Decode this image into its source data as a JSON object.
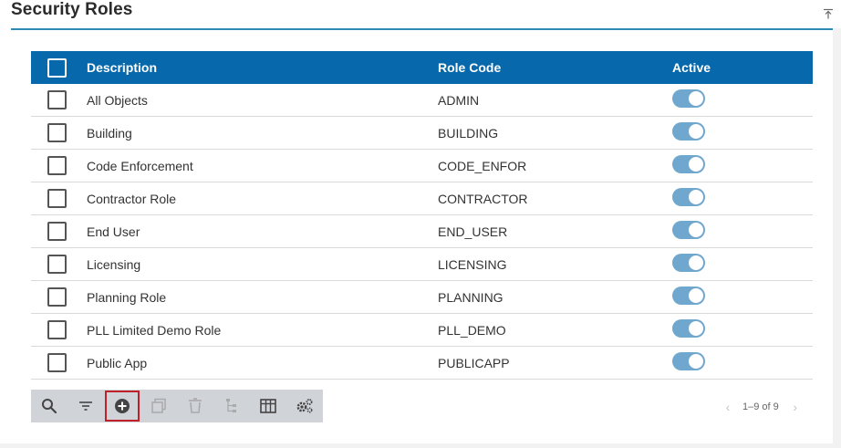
{
  "page": {
    "title": "Security Roles"
  },
  "grid": {
    "headers": {
      "description": "Description",
      "role_code": "Role Code",
      "active": "Active"
    },
    "rows": [
      {
        "description": "All Objects",
        "role_code": "ADMIN",
        "active": true
      },
      {
        "description": "Building",
        "role_code": "BUILDING",
        "active": true
      },
      {
        "description": "Code Enforcement",
        "role_code": "CODE_ENFOR",
        "active": true
      },
      {
        "description": "Contractor Role",
        "role_code": "CONTRACTOR",
        "active": true
      },
      {
        "description": "End User",
        "role_code": "END_USER",
        "active": true
      },
      {
        "description": "Licensing",
        "role_code": "LICENSING",
        "active": true
      },
      {
        "description": "Planning Role",
        "role_code": "PLANNING",
        "active": true
      },
      {
        "description": "PLL Limited Demo Role",
        "role_code": "PLL_DEMO",
        "active": true
      },
      {
        "description": "Public App",
        "role_code": "PUBLICAPP",
        "active": true
      }
    ]
  },
  "toolbar": {
    "tools": [
      "search-icon",
      "filter-icon",
      "add-circle-icon",
      "copy-icon",
      "delete-icon",
      "hierarchy-icon",
      "table-columns-icon",
      "settings-gears-icon"
    ],
    "highlighted": "add-circle-icon"
  },
  "pager": {
    "range": "1–9 of 9"
  },
  "colors": {
    "header_bg": "#0769ab",
    "accent_rule": "#2f8ab5",
    "toggle_on": "#6fa7cf",
    "highlight": "#c0202a"
  }
}
